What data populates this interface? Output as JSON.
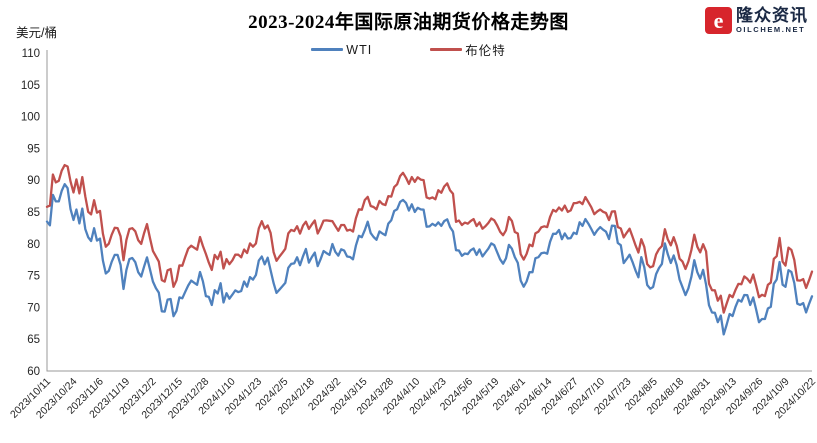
{
  "header": {
    "title": "2023-2024年国际原油期货价格走势图",
    "unit_label": "美元/桶"
  },
  "logo": {
    "brand_cn": "隆众资讯",
    "brand_en": "OILCHEM.NET",
    "icon_letter": "e",
    "icon_color": "#d7252c",
    "text_color": "#1b2944"
  },
  "legend": [
    {
      "label": "WTI",
      "color": "#4F81BD"
    },
    {
      "label": "布伦特",
      "color": "#C0504D"
    }
  ],
  "chart_data": {
    "type": "line",
    "title": "2023-2024年国际原油期货价格走势图",
    "xlabel": "",
    "ylabel": "美元/桶",
    "ylim": [
      60,
      110
    ],
    "y_ticks": [
      110,
      105,
      100,
      95,
      90,
      85,
      80,
      75,
      70,
      65,
      60
    ],
    "grid": false,
    "legend_position": "top",
    "axis_color": "#9a9a9a",
    "x_tick_labels": [
      "2023/10/11",
      "2023/10/24",
      "2023/11/6",
      "2023/11/19",
      "2023/12/2",
      "2023/12/15",
      "2023/12/28",
      "2024/1/10",
      "2024/1/23",
      "2024/2/5",
      "2024/2/18",
      "2024/3/2",
      "2024/3/15",
      "2024/3/28",
      "2024/4/10",
      "2024/4/23",
      "2024/5/6",
      "2024/5/19",
      "2024/6/1",
      "2024/6/14",
      "2024/6/27",
      "2024/7/10",
      "2024/7/23",
      "2024/8/5",
      "2024/8/18",
      "2024/8/31",
      "2024/9/13",
      "2024/9/26",
      "2024/10/9",
      "2024/10/22"
    ],
    "x": [
      "2023/10/11",
      "2023/10/12",
      "2023/10/13",
      "2023/10/16",
      "2023/10/17",
      "2023/10/18",
      "2023/10/19",
      "2023/10/20",
      "2023/10/23",
      "2023/10/24",
      "2023/10/25",
      "2023/10/26",
      "2023/10/27",
      "2023/10/30",
      "2023/10/31",
      "2023/11/1",
      "2023/11/2",
      "2023/11/3",
      "2023/11/6",
      "2023/11/7",
      "2023/11/8",
      "2023/11/9",
      "2023/11/10",
      "2023/11/13",
      "2023/11/14",
      "2023/11/15",
      "2023/11/16",
      "2023/11/17",
      "2023/11/20",
      "2023/11/21",
      "2023/11/22",
      "2023/11/24",
      "2023/11/27",
      "2023/11/28",
      "2023/11/29",
      "2023/11/30",
      "2023/12/1",
      "2023/12/4",
      "2023/12/5",
      "2023/12/6",
      "2023/12/7",
      "2023/12/8",
      "2023/12/11",
      "2023/12/12",
      "2023/12/13",
      "2023/12/14",
      "2023/12/15",
      "2023/12/18",
      "2023/12/19",
      "2023/12/20",
      "2023/12/21",
      "2023/12/22",
      "2023/12/26",
      "2023/12/27",
      "2023/12/28",
      "2023/12/29",
      "2024/1/2",
      "2024/1/3",
      "2024/1/4",
      "2024/1/5",
      "2024/1/8",
      "2024/1/9",
      "2024/1/10",
      "2024/1/11",
      "2024/1/12",
      "2024/1/16",
      "2024/1/17",
      "2024/1/18",
      "2024/1/19",
      "2024/1/22",
      "2024/1/23",
      "2024/1/24",
      "2024/1/25",
      "2024/1/26",
      "2024/1/29",
      "2024/1/30",
      "2024/1/31",
      "2024/2/1",
      "2024/2/2",
      "2024/2/5",
      "2024/2/6",
      "2024/2/7",
      "2024/2/8",
      "2024/2/9",
      "2024/2/12",
      "2024/2/13",
      "2024/2/14",
      "2024/2/15",
      "2024/2/16",
      "2024/2/20",
      "2024/2/21",
      "2024/2/22",
      "2024/2/23",
      "2024/2/26",
      "2024/2/27",
      "2024/2/28",
      "2024/2/29",
      "2024/3/1",
      "2024/3/4",
      "2024/3/5",
      "2024/3/6",
      "2024/3/7",
      "2024/3/8",
      "2024/3/11",
      "2024/3/12",
      "2024/3/13",
      "2024/3/14",
      "2024/3/15",
      "2024/3/18",
      "2024/3/19",
      "2024/3/20",
      "2024/3/21",
      "2024/3/22",
      "2024/3/25",
      "2024/3/26",
      "2024/3/27",
      "2024/3/28",
      "2024/4/1",
      "2024/4/2",
      "2024/4/3",
      "2024/4/4",
      "2024/4/5",
      "2024/4/8",
      "2024/4/9",
      "2024/4/10",
      "2024/4/11",
      "2024/4/12",
      "2024/4/15",
      "2024/4/16",
      "2024/4/17",
      "2024/4/18",
      "2024/4/19",
      "2024/4/22",
      "2024/4/23",
      "2024/4/24",
      "2024/4/25",
      "2024/4/26",
      "2024/4/29",
      "2024/4/30",
      "2024/5/1",
      "2024/5/2",
      "2024/5/3",
      "2024/5/6",
      "2024/5/7",
      "2024/5/8",
      "2024/5/9",
      "2024/5/10",
      "2024/5/13",
      "2024/5/14",
      "2024/5/15",
      "2024/5/16",
      "2024/5/17",
      "2024/5/20",
      "2024/5/21",
      "2024/5/22",
      "2024/5/23",
      "2024/5/24",
      "2024/5/28",
      "2024/5/29",
      "2024/5/30",
      "2024/5/31",
      "2024/6/3",
      "2024/6/4",
      "2024/6/5",
      "2024/6/6",
      "2024/6/7",
      "2024/6/10",
      "2024/6/11",
      "2024/6/12",
      "2024/6/13",
      "2024/6/14",
      "2024/6/17",
      "2024/6/18",
      "2024/6/19",
      "2024/6/20",
      "2024/6/21",
      "2024/6/24",
      "2024/6/25",
      "2024/6/26",
      "2024/6/27",
      "2024/6/28",
      "2024/7/1",
      "2024/7/2",
      "2024/7/3",
      "2024/7/5",
      "2024/7/8",
      "2024/7/9",
      "2024/7/10",
      "2024/7/11",
      "2024/7/12",
      "2024/7/15",
      "2024/7/16",
      "2024/7/17",
      "2024/7/18",
      "2024/7/19",
      "2024/7/22",
      "2024/7/23",
      "2024/7/24",
      "2024/7/25",
      "2024/7/26",
      "2024/7/29",
      "2024/7/30",
      "2024/7/31",
      "2024/8/1",
      "2024/8/2",
      "2024/8/5",
      "2024/8/6",
      "2024/8/7",
      "2024/8/8",
      "2024/8/9",
      "2024/8/12",
      "2024/8/13",
      "2024/8/14",
      "2024/8/15",
      "2024/8/16",
      "2024/8/19",
      "2024/8/20",
      "2024/8/21",
      "2024/8/22",
      "2024/8/23",
      "2024/8/26",
      "2024/8/27",
      "2024/8/28",
      "2024/8/29",
      "2024/8/30",
      "2024/9/3",
      "2024/9/4",
      "2024/9/5",
      "2024/9/6",
      "2024/9/9",
      "2024/9/10",
      "2024/9/11",
      "2024/9/12",
      "2024/9/13",
      "2024/9/16",
      "2024/9/17",
      "2024/9/18",
      "2024/9/19",
      "2024/9/20",
      "2024/9/23",
      "2024/9/24",
      "2024/9/25",
      "2024/9/26",
      "2024/9/27",
      "2024/9/30",
      "2024/10/1",
      "2024/10/2",
      "2024/10/3",
      "2024/10/4",
      "2024/10/7",
      "2024/10/8",
      "2024/10/9",
      "2024/10/10",
      "2024/10/11",
      "2024/10/14",
      "2024/10/15",
      "2024/10/16",
      "2024/10/17",
      "2024/10/18",
      "2024/10/21",
      "2024/10/22"
    ],
    "series": [
      {
        "name": "WTI",
        "color": "#4F81BD",
        "values": [
          83.49,
          82.91,
          87.69,
          86.66,
          86.66,
          88.32,
          89.37,
          88.75,
          85.49,
          83.74,
          85.39,
          83.21,
          85.54,
          82.31,
          81.02,
          80.44,
          82.46,
          80.51,
          80.82,
          77.37,
          75.33,
          75.74,
          77.17,
          78.26,
          78.26,
          76.66,
          72.9,
          75.89,
          77.6,
          77.77,
          77.1,
          75.54,
          74.86,
          76.41,
          77.86,
          75.96,
          74.07,
          73.04,
          72.32,
          69.38,
          69.34,
          71.23,
          71.32,
          68.61,
          69.47,
          71.58,
          71.43,
          72.47,
          73.44,
          74.22,
          73.89,
          73.56,
          75.57,
          74.11,
          71.77,
          71.65,
          70.38,
          72.7,
          72.19,
          73.81,
          70.77,
          72.24,
          71.37,
          72.02,
          72.68,
          72.4,
          72.56,
          74.08,
          73.25,
          74.76,
          74.37,
          75.09,
          77.36,
          78.01,
          76.78,
          77.82,
          75.85,
          73.82,
          72.28,
          72.78,
          73.31,
          73.86,
          76.22,
          76.84,
          76.92,
          77.87,
          76.64,
          78.03,
          79.19,
          77.04,
          77.91,
          78.61,
          76.49,
          77.58,
          78.87,
          78.54,
          78.26,
          79.97,
          78.74,
          78.15,
          79.13,
          78.93,
          78.01,
          77.93,
          77.56,
          79.72,
          81.26,
          81.04,
          82.16,
          83.47,
          81.68,
          81.07,
          80.63,
          81.95,
          81.62,
          81.35,
          83.17,
          83.71,
          85.15,
          85.43,
          86.59,
          86.91,
          86.43,
          85.23,
          86.21,
          85.02,
          85.66,
          85.41,
          85.36,
          82.69,
          82.73,
          83.14,
          82.85,
          83.36,
          82.81,
          83.57,
          83.85,
          82.63,
          81.93,
          79.0,
          78.95,
          78.11,
          78.48,
          78.38,
          78.99,
          79.26,
          78.26,
          79.12,
          78.02,
          78.63,
          79.23,
          80.06,
          79.8,
          78.66,
          77.57,
          76.87,
          77.72,
          79.83,
          79.23,
          77.91,
          76.99,
          74.22,
          73.25,
          74.07,
          75.55,
          75.53,
          77.74,
          77.9,
          78.5,
          78.62,
          78.45,
          80.33,
          81.57,
          81.57,
          82.17,
          80.73,
          81.63,
          80.83,
          80.9,
          81.74,
          81.54,
          83.38,
          82.81,
          83.88,
          83.16,
          82.33,
          81.41,
          82.1,
          82.62,
          82.21,
          81.91,
          80.76,
          82.85,
          82.82,
          80.13,
          79.78,
          76.96,
          77.59,
          78.28,
          77.16,
          75.81,
          74.73,
          77.91,
          76.31,
          73.52,
          72.94,
          73.2,
          75.23,
          76.19,
          76.84,
          80.06,
          78.35,
          76.98,
          78.16,
          76.65,
          74.37,
          73.17,
          71.93,
          73.01,
          74.83,
          77.42,
          75.53,
          74.52,
          75.91,
          73.55,
          70.34,
          69.2,
          69.15,
          67.67,
          68.71,
          65.75,
          67.31,
          68.97,
          68.65,
          70.09,
          71.19,
          70.91,
          71.95,
          71.92,
          70.37,
          71.56,
          69.69,
          67.67,
          68.18,
          68.17,
          69.83,
          70.1,
          73.71,
          74.38,
          77.14,
          73.57,
          73.24,
          75.85,
          75.56,
          73.83,
          70.58,
          70.39,
          70.67,
          69.22,
          70.56,
          71.74
        ]
      },
      {
        "name": "布伦特",
        "color": "#C0504D",
        "values": [
          85.82,
          86.0,
          90.89,
          89.65,
          89.9,
          91.5,
          92.38,
          92.16,
          89.83,
          88.07,
          90.13,
          87.93,
          90.48,
          87.45,
          85.02,
          84.63,
          86.85,
          84.89,
          85.18,
          81.61,
          79.54,
          80.01,
          81.43,
          82.52,
          82.47,
          81.18,
          77.42,
          80.61,
          82.32,
          82.45,
          81.96,
          80.58,
          79.98,
          81.68,
          83.1,
          80.86,
          78.88,
          78.03,
          77.2,
          74.3,
          74.05,
          75.84,
          76.03,
          73.24,
          74.26,
          76.61,
          76.55,
          77.95,
          79.23,
          79.7,
          79.39,
          79.07,
          81.07,
          79.65,
          78.39,
          77.04,
          75.89,
          78.25,
          77.59,
          78.76,
          76.12,
          77.59,
          76.8,
          77.41,
          78.29,
          78.29,
          77.88,
          79.1,
          78.56,
          80.06,
          79.55,
          80.04,
          82.43,
          83.55,
          82.4,
          82.87,
          81.71,
          78.7,
          77.33,
          77.99,
          78.59,
          79.21,
          81.63,
          82.19,
          82.0,
          82.77,
          81.6,
          82.86,
          83.47,
          82.34,
          83.03,
          83.67,
          81.62,
          82.53,
          83.65,
          83.68,
          83.62,
          83.55,
          82.8,
          82.04,
          82.96,
          82.96,
          82.08,
          82.21,
          81.92,
          84.03,
          85.42,
          85.34,
          86.89,
          87.38,
          85.95,
          85.78,
          85.43,
          86.75,
          86.25,
          86.09,
          87.48,
          87.42,
          88.92,
          89.35,
          90.65,
          91.17,
          90.38,
          89.42,
          90.48,
          89.74,
          90.45,
          90.1,
          90.02,
          87.29,
          87.11,
          87.29,
          87.0,
          88.42,
          88.02,
          89.01,
          89.5,
          88.4,
          87.86,
          83.44,
          83.67,
          82.96,
          83.33,
          83.16,
          83.58,
          83.88,
          82.79,
          83.36,
          82.38,
          82.75,
          83.27,
          83.98,
          83.71,
          82.88,
          81.9,
          81.36,
          82.12,
          84.22,
          83.6,
          81.86,
          81.62,
          78.36,
          77.52,
          78.41,
          79.87,
          79.62,
          81.63,
          81.92,
          82.6,
          82.75,
          82.62,
          84.25,
          85.33,
          85.07,
          85.71,
          85.24,
          86.01,
          85.01,
          85.25,
          86.39,
          86.41,
          86.6,
          86.24,
          87.34,
          86.54,
          85.75,
          84.66,
          85.08,
          85.4,
          85.03,
          84.85,
          83.73,
          85.08,
          85.11,
          82.63,
          82.4,
          81.01,
          81.71,
          82.37,
          81.13,
          79.78,
          78.63,
          80.72,
          79.52,
          76.81,
          76.3,
          76.48,
          78.33,
          79.16,
          79.66,
          82.3,
          80.69,
          79.76,
          81.04,
          79.68,
          77.66,
          77.2,
          76.05,
          77.22,
          79.02,
          81.43,
          79.55,
          78.65,
          79.94,
          78.8,
          73.75,
          72.7,
          72.69,
          71.06,
          71.84,
          69.19,
          70.61,
          71.97,
          71.61,
          72.75,
          73.7,
          73.65,
          74.88,
          74.49,
          73.9,
          75.17,
          73.46,
          71.6,
          71.98,
          71.77,
          73.56,
          73.9,
          77.62,
          78.05,
          80.93,
          77.18,
          76.58,
          79.4,
          79.04,
          77.46,
          74.25,
          74.22,
          74.45,
          73.06,
          74.29,
          75.63
        ]
      }
    ]
  }
}
